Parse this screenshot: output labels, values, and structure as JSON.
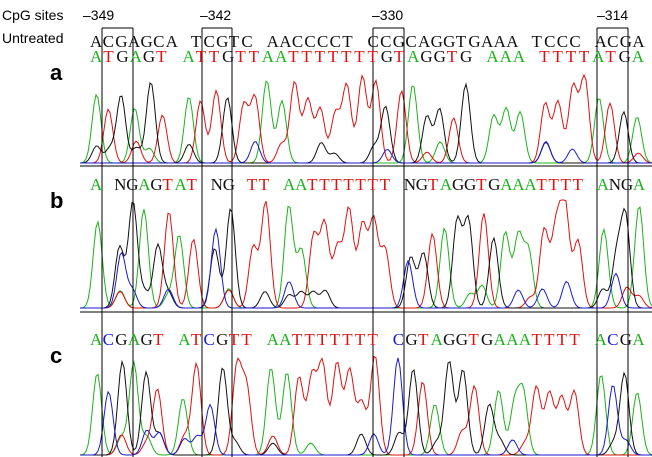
{
  "header": {
    "cpg_label": "CpG sites",
    "positions": [
      "–349",
      "–342",
      "–330",
      "–314"
    ],
    "untreated_label": "Untreated",
    "untreated_words": [
      "ACGAGCA",
      "TCGTC",
      "AACCCCT",
      "CCGCAGGTGAAA",
      "TCCC",
      "ACGA"
    ]
  },
  "panels": [
    {
      "label": "a",
      "words": [
        "ATGAGT",
        "ATTGTTAATTTTTTTGTAGGTG",
        "AAA",
        "TTTTATGA"
      ]
    },
    {
      "label": "b",
      "words": [
        "A",
        "NGAGTAT",
        "NG",
        "TT",
        "AATTTTTTT",
        "NGTAGGTGAAATTTT",
        "ANGA"
      ]
    },
    {
      "label": "c",
      "words": [
        "ACGAGT",
        "ATCGTT",
        "AATTTTTTT",
        "CGTAGGTGAAATTTT",
        "ACGA"
      ]
    }
  ]
}
